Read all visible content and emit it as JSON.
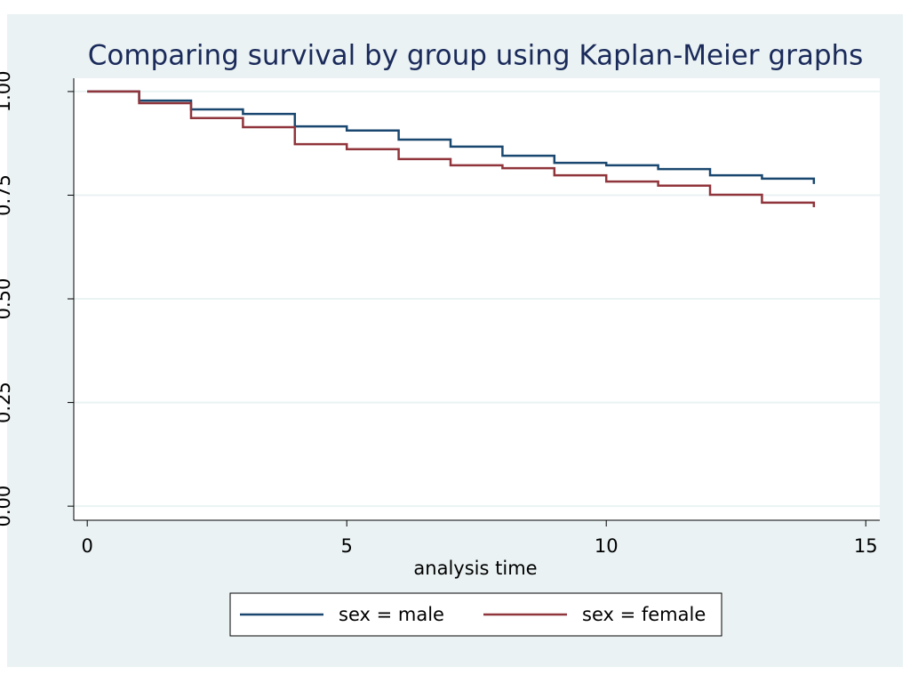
{
  "chart_data": {
    "type": "step",
    "title": "Comparing survival by group using Kaplan-Meier graphs",
    "x_label": "analysis time",
    "xlim": [
      -0.26,
      15.27
    ],
    "ylim": [
      -0.034,
      1.032
    ],
    "xticks": [
      0,
      5,
      10,
      15
    ],
    "yticks": [
      {
        "value": 0,
        "label": "0.00"
      },
      {
        "value": 0.25,
        "label": "0.25"
      },
      {
        "value": 0.5,
        "label": "0.50"
      },
      {
        "value": 0.75,
        "label": "0.75"
      },
      {
        "value": 1,
        "label": "1.00"
      }
    ],
    "grid": true,
    "x": [
      0,
      1,
      2,
      3,
      4,
      5,
      6,
      7,
      8,
      9,
      10,
      11,
      12,
      13,
      14
    ],
    "series": [
      {
        "name": "sex = male",
        "color": "#1a476f",
        "values": [
          1.0,
          0.978,
          0.957,
          0.946,
          0.916,
          0.906,
          0.884,
          0.867,
          0.845,
          0.828,
          0.822,
          0.813,
          0.798,
          0.79,
          0.777
        ]
      },
      {
        "name": "sex = female",
        "color": "#90353b",
        "values": [
          1.0,
          0.972,
          0.936,
          0.914,
          0.873,
          0.861,
          0.837,
          0.822,
          0.815,
          0.798,
          0.783,
          0.773,
          0.751,
          0.732,
          0.721
        ]
      }
    ]
  }
}
